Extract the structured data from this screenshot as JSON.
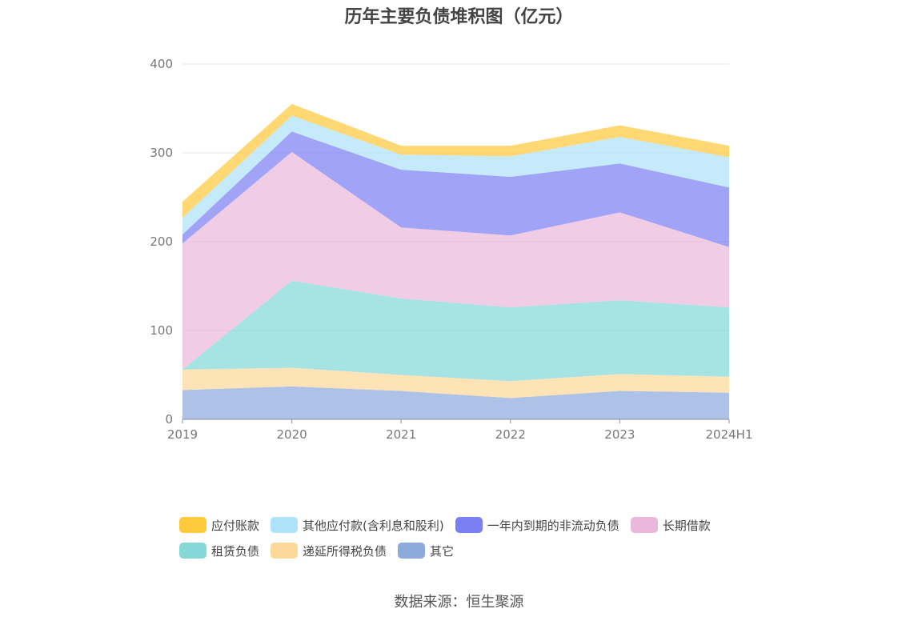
{
  "title": "历年主要负债堆积图（亿元）",
  "source": "数据来源：恒生聚源",
  "chart_data": {
    "type": "area",
    "stacked": true,
    "categories": [
      "2019",
      "2020",
      "2021",
      "2022",
      "2023",
      "2024H1"
    ],
    "ylim": [
      0,
      400
    ],
    "yticks": [
      "0",
      "100",
      "200",
      "300",
      "400"
    ],
    "grid": true,
    "legend_position": "bottom",
    "series": [
      {
        "name": "其它",
        "color": "#8eaadc",
        "values": [
          33,
          37,
          32,
          24,
          32,
          30
        ]
      },
      {
        "name": "递延所得税负债",
        "color": "#fdd89b",
        "values": [
          23,
          21,
          18,
          19,
          19,
          18
        ]
      },
      {
        "name": "租赁负债",
        "color": "#84d8d8",
        "values": [
          0,
          98,
          86,
          83,
          83,
          78
        ]
      },
      {
        "name": "长期借款",
        "color": "#eab8db",
        "values": [
          142,
          145,
          80,
          81,
          99,
          68
        ]
      },
      {
        "name": "一年内到期的非流动负债",
        "color": "#7b7ff2",
        "values": [
          10,
          23,
          65,
          66,
          55,
          67
        ]
      },
      {
        "name": "其他应付款(含利息和股利)",
        "color": "#aee2f8",
        "values": [
          19,
          18,
          17,
          23,
          30,
          34
        ]
      },
      {
        "name": "应付账款",
        "color": "#ffc93e",
        "values": [
          18,
          13,
          10,
          12,
          13,
          13
        ]
      }
    ]
  },
  "legend": {
    "row1": [
      "应付账款",
      "其他应付款(含利息和股利)",
      "一年内到期的非流动负债",
      "长期借款"
    ],
    "row2": [
      "租赁负债",
      "递延所得税负债",
      "其它"
    ]
  }
}
